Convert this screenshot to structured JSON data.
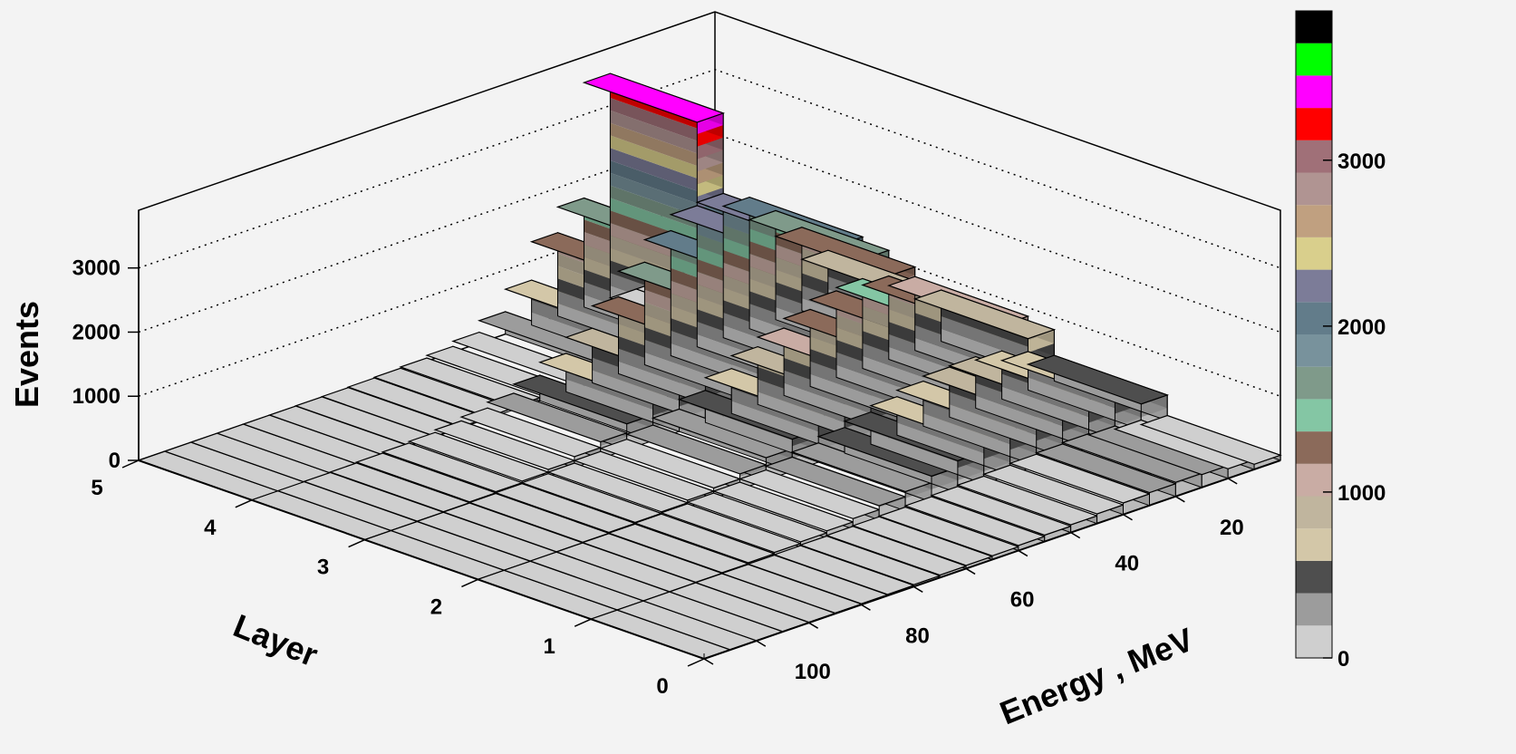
{
  "chart_data": {
    "type": "lego3d",
    "title": "",
    "xlabel": "Energy , MeV",
    "ylabel": "Layer",
    "zlabel": "Events",
    "x_range": [
      0,
      110
    ],
    "y_range": [
      0,
      5
    ],
    "z_range": [
      0,
      3900
    ],
    "x_ticks": [
      100,
      80,
      60,
      40,
      20
    ],
    "y_ticks": [
      0,
      1,
      2,
      3,
      4,
      5
    ],
    "z_ticks": [
      0,
      1000,
      2000,
      3000
    ],
    "palette_ticks": [
      0,
      1000,
      2000,
      3000
    ],
    "grid": true,
    "energy_bins": [
      [
        0,
        5
      ],
      [
        5,
        10
      ],
      [
        10,
        15
      ],
      [
        15,
        20
      ],
      [
        20,
        25
      ],
      [
        25,
        30
      ],
      [
        30,
        35
      ],
      [
        35,
        40
      ],
      [
        40,
        45
      ],
      [
        45,
        50
      ],
      [
        50,
        55
      ],
      [
        55,
        60
      ],
      [
        60,
        65
      ],
      [
        65,
        70
      ],
      [
        70,
        75
      ],
      [
        75,
        80
      ],
      [
        80,
        85
      ],
      [
        85,
        90
      ],
      [
        90,
        95
      ],
      [
        95,
        100
      ],
      [
        100,
        105
      ],
      [
        105,
        110
      ]
    ],
    "layers": [
      {
        "layer": 0,
        "values": [
          80,
          150,
          200,
          220,
          200,
          180,
          150,
          120,
          100,
          80,
          60,
          50,
          40,
          30,
          20,
          15,
          10,
          8,
          5,
          3,
          2,
          1
        ]
      },
      {
        "layer": 1,
        "values": [
          400,
          600,
          750,
          800,
          780,
          700,
          600,
          500,
          400,
          300,
          220,
          160,
          110,
          80,
          55,
          35,
          20,
          12,
          8,
          5,
          3,
          2
        ]
      },
      {
        "layer": 2,
        "values": [
          800,
          1150,
          1300,
          1400,
          1350,
          1200,
          1050,
          900,
          700,
          500,
          350,
          240,
          160,
          110,
          70,
          45,
          30,
          18,
          10,
          6,
          3,
          2
        ]
      },
      {
        "layer": 3,
        "values": [
          800,
          1300,
          1700,
          2050,
          2250,
          2200,
          1950,
          1600,
          1200,
          850,
          600,
          400,
          260,
          170,
          110,
          70,
          45,
          28,
          15,
          8,
          4,
          2
        ]
      },
      {
        "layer": 4,
        "values": [
          0,
          0,
          0,
          0,
          3500,
          1700,
          1300,
          700,
          350,
          170,
          90,
          50,
          30,
          18,
          10,
          6,
          3,
          2,
          1,
          1,
          0,
          0
        ]
      }
    ],
    "palette": [
      "#cfcfcf",
      "#9c9c9c",
      "#4e4e4e",
      "#d3c7a8",
      "#c0b59e",
      "#c9aca4",
      "#8b6a5a",
      "#84c6a4",
      "#7f9a8a",
      "#78929c",
      "#627c8a",
      "#7c7c98",
      "#d9cf8c",
      "#c0a080",
      "#b09492",
      "#a07078",
      "#ff0000",
      "#ff00ff",
      "#00ff00",
      "#000000"
    ],
    "palette_step": 195
  }
}
